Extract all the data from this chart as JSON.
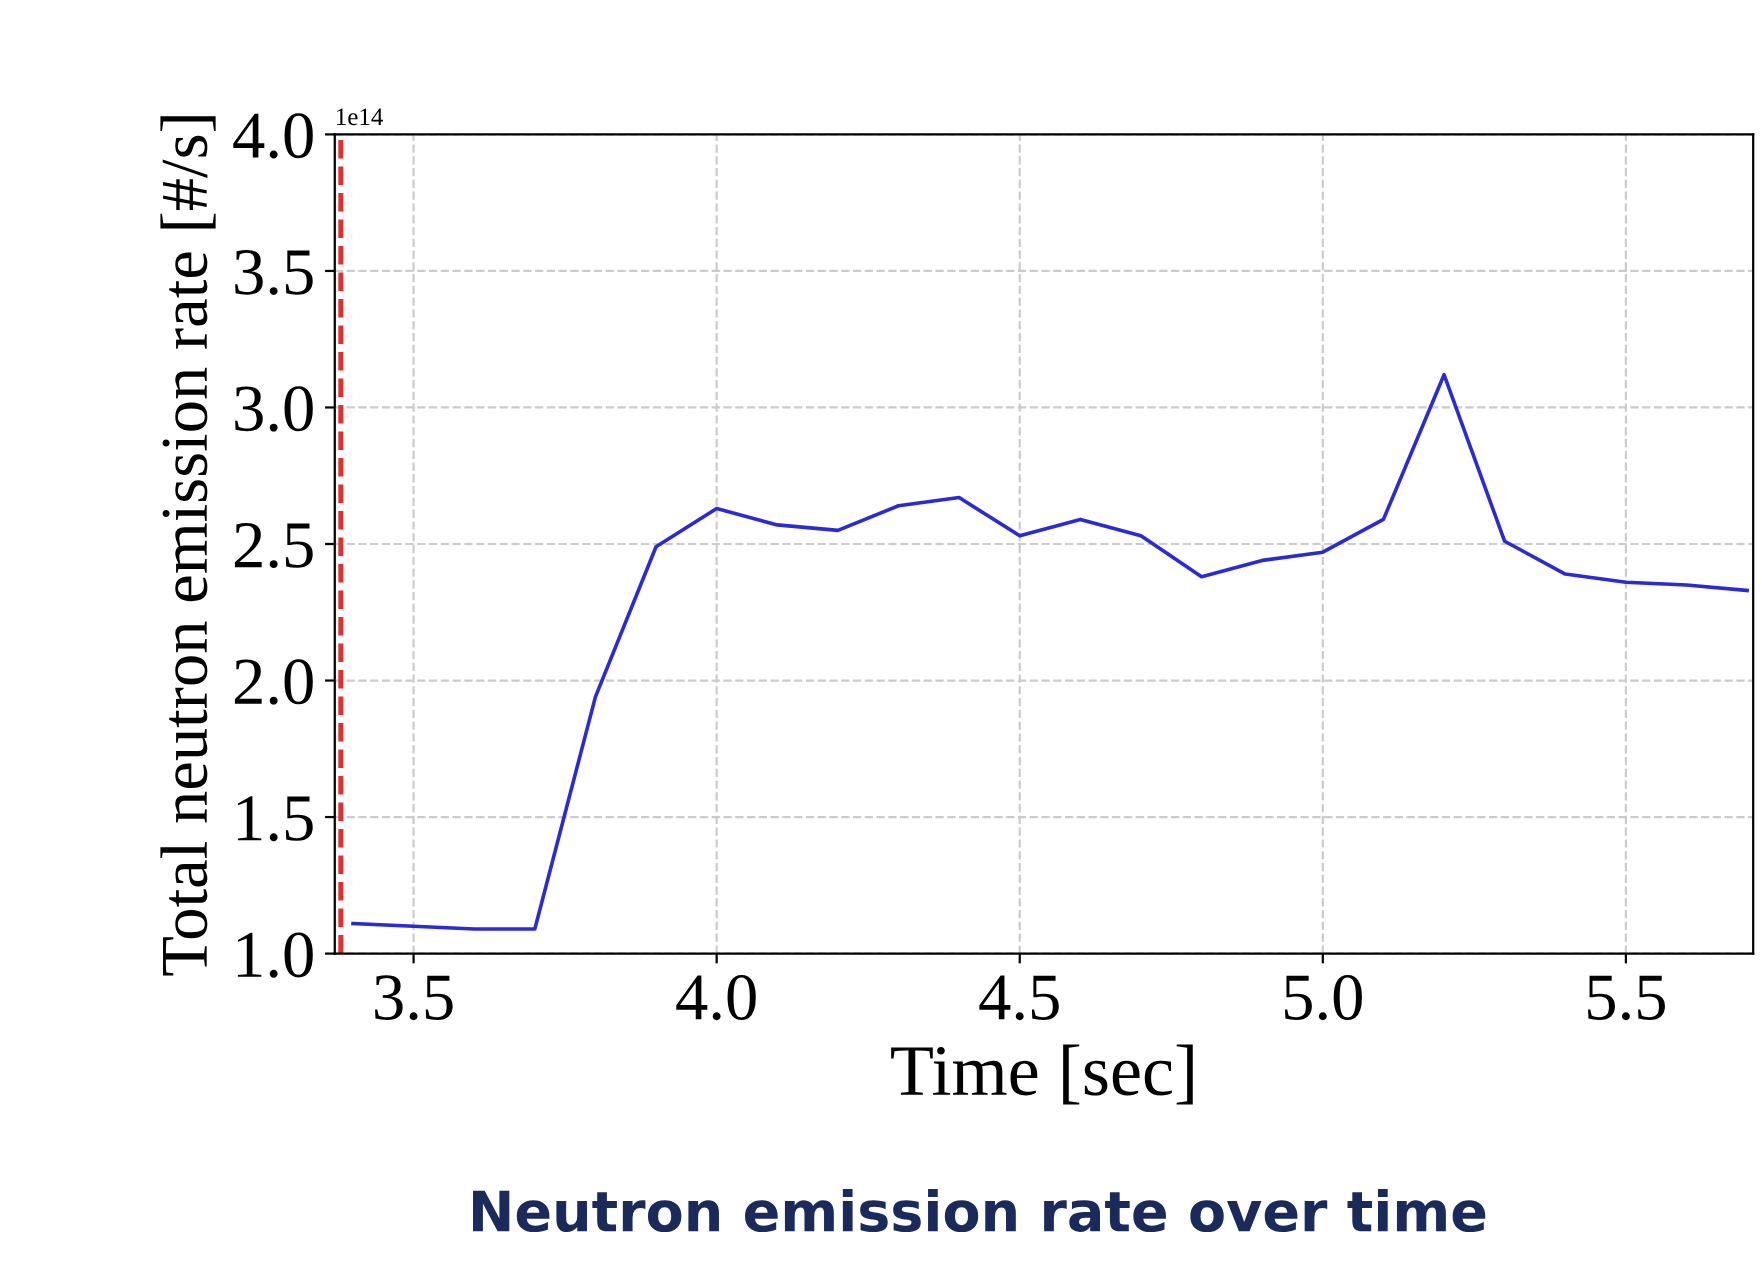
{
  "chart_data": {
    "type": "line",
    "xlabel": "Time [sec]",
    "ylabel": "Total neutron emission rate [#/s]",
    "x": [
      3.4,
      3.5,
      3.6,
      3.7,
      3.8,
      3.9,
      4.0,
      4.1,
      4.2,
      4.3,
      4.4,
      4.5,
      4.6,
      4.7,
      4.8,
      4.9,
      5.0,
      5.1,
      5.2,
      5.3,
      5.4,
      5.5,
      5.6,
      5.7
    ],
    "series": [
      {
        "color": "#2b2bd6",
        "values": [
          1.11,
          1.1,
          1.09,
          1.09,
          1.94,
          2.49,
          2.63,
          2.57,
          2.55,
          2.64,
          2.67,
          2.53,
          2.59,
          2.53,
          2.38,
          2.44,
          2.47,
          2.59,
          3.12,
          2.51,
          2.39,
          2.36,
          2.35,
          2.33
        ]
      }
    ],
    "xlim": [
      3.37,
      5.71
    ],
    "ylim": [
      1,
      4
    ],
    "xticks": [
      3.5,
      {
        "value": 4,
        "label": "4.0"
      },
      4.5,
      {
        "value": 5,
        "label": "5.0"
      },
      5.5
    ],
    "yticks": [
      {
        "value": 1,
        "label": "1.0"
      },
      1.5,
      {
        "value": 2,
        "label": "2.0"
      },
      2.5,
      {
        "value": 3,
        "label": "3.0"
      },
      3.5,
      {
        "value": 4,
        "label": "4.0"
      }
    ],
    "ref_lines": [
      {
        "axis": "x",
        "value": 3.38,
        "color": "#e03030",
        "line_style": "dashed"
      }
    ],
    "grid": true,
    "marker": "none",
    "line_style": "solid",
    "annotations": [
      "1e14",
      "Neutron emission rate over time"
    ]
  }
}
